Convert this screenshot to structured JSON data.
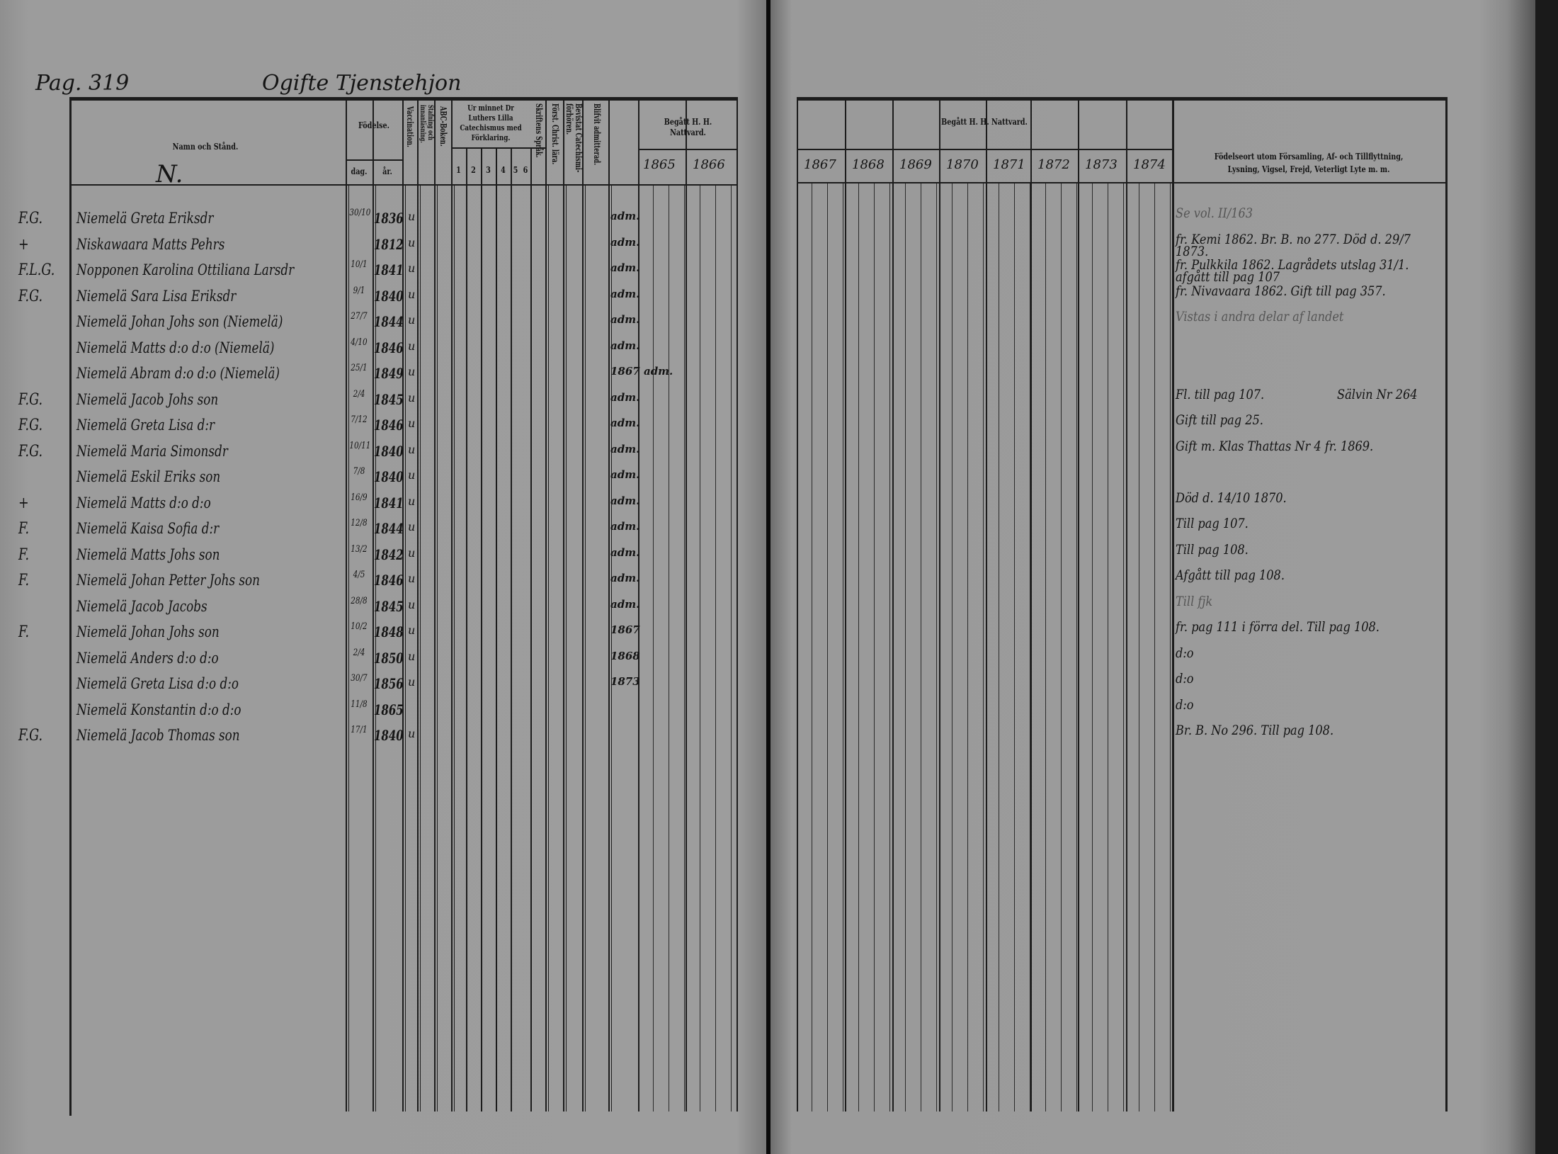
{
  "left_page": {
    "page_ref": "Pag. 319",
    "section_title": "Ogifte Tjenstehjon",
    "headers": {
      "name": "Namn och Stånd.",
      "name_letter": "N.",
      "birth": "Födelse.",
      "birth_day": "dag.",
      "birth_year": "år.",
      "vaccination": "Vaccination.",
      "reading": "Stafning och innanläsning.",
      "abc": "ABC-Boken.",
      "catechism": "Ur minnet Dr Luthers Lilla Catechismus med Förklaring.",
      "catechism_parts": [
        "1",
        "2",
        "3",
        "4",
        "5",
        "6"
      ],
      "scripture": "Skriftens Språk.",
      "christ": "Först. Christ. lära.",
      "attended": "Bevistat Catechismi-förhören.",
      "admitted": "Blifvit admitterad.",
      "communion": "Begått H. H. Nattvard.",
      "years": [
        "1865",
        "1866"
      ]
    }
  },
  "right_page": {
    "headers": {
      "communion": "Begått H. H. Nattvard.",
      "years": [
        "1867",
        "1868",
        "1869",
        "1870",
        "1871",
        "1872",
        "1873",
        "1874"
      ],
      "remarks": "Födelseort utom Församling, Af- och Tillflyttning, Lysning, Vigsel, Frejd, Veterligt Lyte m. m."
    }
  },
  "rows": [
    {
      "mark": "F.G.",
      "name": "Niemelä Greta Eriksdr",
      "day": "30/10",
      "year": "1836",
      "vacc": "u",
      "adm": "adm.",
      "note": "Se vol. II/163",
      "note_faint": true
    },
    {
      "mark": "+",
      "name": "Niskawaara Matts Pehrs",
      "day": "",
      "year": "1812",
      "vacc": "u",
      "adm": "adm.",
      "note": "fr. Kemi 1862. Br. B. no 277. Död d. 29/7 1873."
    },
    {
      "mark": "F.L.G.",
      "name": "Nopponen Karolina Ottiliana Larsdr",
      "day": "10/1",
      "year": "1841",
      "vacc": "u",
      "adm": "adm.",
      "note": "fr. Pulkkila 1862. Lagrådets utslag 31/1. afgått till pag 107"
    },
    {
      "mark": "F.G.",
      "name": "Niemelä Sara Lisa Eriksdr",
      "day": "9/1",
      "year": "1840",
      "vacc": "u",
      "adm": "adm.",
      "note": "fr. Nivavaara 1862. Gift till pag 357."
    },
    {
      "mark": "",
      "name": "Niemelä Johan Johs son (Niemelä)",
      "day": "27/7",
      "year": "1844",
      "vacc": "u",
      "adm": "adm.",
      "note": "Vistas i andra delar af landet",
      "note_faint": true
    },
    {
      "mark": "",
      "name": "Niemelä Matts d:o d:o (Niemelä)",
      "day": "4/10",
      "year": "1846",
      "vacc": "u",
      "adm": "adm.",
      "note": ""
    },
    {
      "mark": "",
      "name": "Niemelä Abram d:o d:o (Niemelä)",
      "day": "25/1",
      "year": "1849",
      "vacc": "u",
      "adm": "1867 adm.",
      "note": ""
    },
    {
      "mark": "F.G.",
      "name": "Niemelä Jacob Johs son",
      "day": "2/4",
      "year": "1845",
      "vacc": "u",
      "adm": "adm.",
      "note": "Fl. till pag 107.",
      "note2": "Sälvin Nr 264"
    },
    {
      "mark": "F.G.",
      "name": "Niemelä Greta Lisa d:r",
      "day": "7/12",
      "year": "1846",
      "vacc": "u",
      "adm": "adm.",
      "note": "Gift till pag 25."
    },
    {
      "mark": "F.G.",
      "name": "Niemelä Maria Simonsdr",
      "day": "10/11",
      "year": "1840",
      "vacc": "u",
      "adm": "adm.",
      "note": "Gift m. Klas Thattas Nr 4 fr. 1869."
    },
    {
      "mark": "",
      "name": "Niemelä Eskil Eriks son",
      "day": "7/8",
      "year": "1840",
      "vacc": "u",
      "adm": "adm.",
      "note": ""
    },
    {
      "mark": "+",
      "name": "Niemelä Matts d:o d:o",
      "day": "16/9",
      "year": "1841",
      "vacc": "u",
      "adm": "adm.",
      "note": "Död d. 14/10 1870."
    },
    {
      "mark": "F.",
      "name": "Niemelä Kaisa Sofia d:r",
      "day": "12/8",
      "year": "1844",
      "vacc": "u",
      "adm": "adm.",
      "note": "Till pag 107."
    },
    {
      "mark": "F.",
      "name": "Niemelä Matts Johs son",
      "day": "13/2",
      "year": "1842",
      "vacc": "u",
      "adm": "adm.",
      "note": "Till pag 108."
    },
    {
      "mark": "F.",
      "name": "Niemelä Johan Petter Johs son",
      "day": "4/5",
      "year": "1846",
      "vacc": "u",
      "adm": "adm.",
      "note": "Afgått till pag 108."
    },
    {
      "mark": "",
      "name": "Niemelä Jacob Jacobs",
      "day": "28/8",
      "year": "1845",
      "vacc": "u",
      "adm": "adm.",
      "note": "Till fjk",
      "note_faint": true
    },
    {
      "mark": "F.",
      "name": "Niemelä Johan Johs son",
      "day": "10/2",
      "year": "1848",
      "vacc": "u",
      "adm": "1867",
      "note": "fr. pag 111 i förra del. Till pag 108."
    },
    {
      "mark": "",
      "name": "Niemelä Anders d:o d:o",
      "day": "2/4",
      "year": "1850",
      "vacc": "u",
      "adm": "1868",
      "note": "d:o"
    },
    {
      "mark": "",
      "name": "Niemelä Greta Lisa d:o d:o",
      "day": "30/7",
      "year": "1856",
      "vacc": "u",
      "adm": "1873",
      "note": "d:o"
    },
    {
      "mark": "",
      "name": "Niemelä Konstantin d:o d:o",
      "day": "11/8",
      "year": "1865",
      "vacc": "",
      "adm": "",
      "note": "d:o"
    },
    {
      "mark": "F.G.",
      "name": "Niemelä Jacob Thomas son",
      "day": "17/1",
      "year": "1840",
      "vacc": "u",
      "adm": "",
      "note": "Br. B. No 296. Till pag 108."
    }
  ],
  "colors": {
    "paper": "#9a9a9a",
    "ink": "#141414",
    "background": "#0a0a0a"
  }
}
